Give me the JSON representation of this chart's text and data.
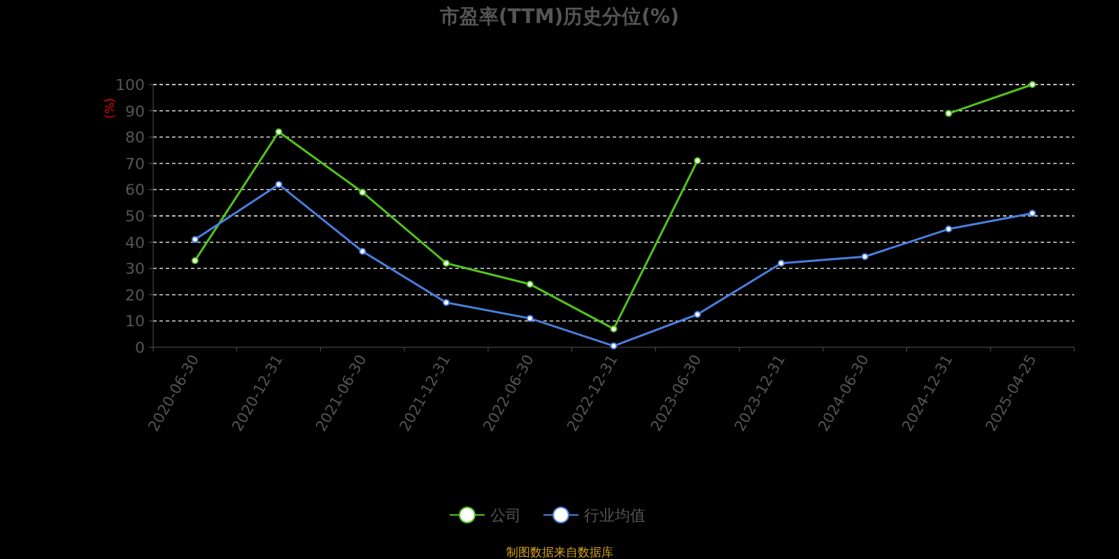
{
  "chart_data": {
    "type": "line",
    "title": "市盈率(TTM)历史分位(%)",
    "ylabel": "(%)",
    "categories": [
      "2020-06-30",
      "2020-12-31",
      "2021-06-30",
      "2021-12-31",
      "2022-06-30",
      "2022-12-31",
      "2023-06-30",
      "2023-12-31",
      "2024-06-30",
      "2024-12-31",
      "2025-04-25"
    ],
    "series": [
      {
        "name": "公司",
        "color": "#52c41a",
        "values": [
          33,
          82,
          59,
          32,
          24,
          7,
          71,
          null,
          null,
          89,
          100
        ]
      },
      {
        "name": "行业均值",
        "color": "#4a7fe0",
        "values": [
          41,
          62,
          36.5,
          17,
          11,
          0.5,
          12.5,
          32,
          34.5,
          45,
          51
        ]
      }
    ],
    "ylim": [
      0,
      100
    ],
    "yticks": [
      0,
      10,
      20,
      30,
      40,
      50,
      60,
      70,
      80,
      90,
      100
    ],
    "grid": "y",
    "legend": "bottom",
    "marker": "circle",
    "line_style": "solid",
    "annotations": [
      "制图数据来自数据库"
    ]
  }
}
